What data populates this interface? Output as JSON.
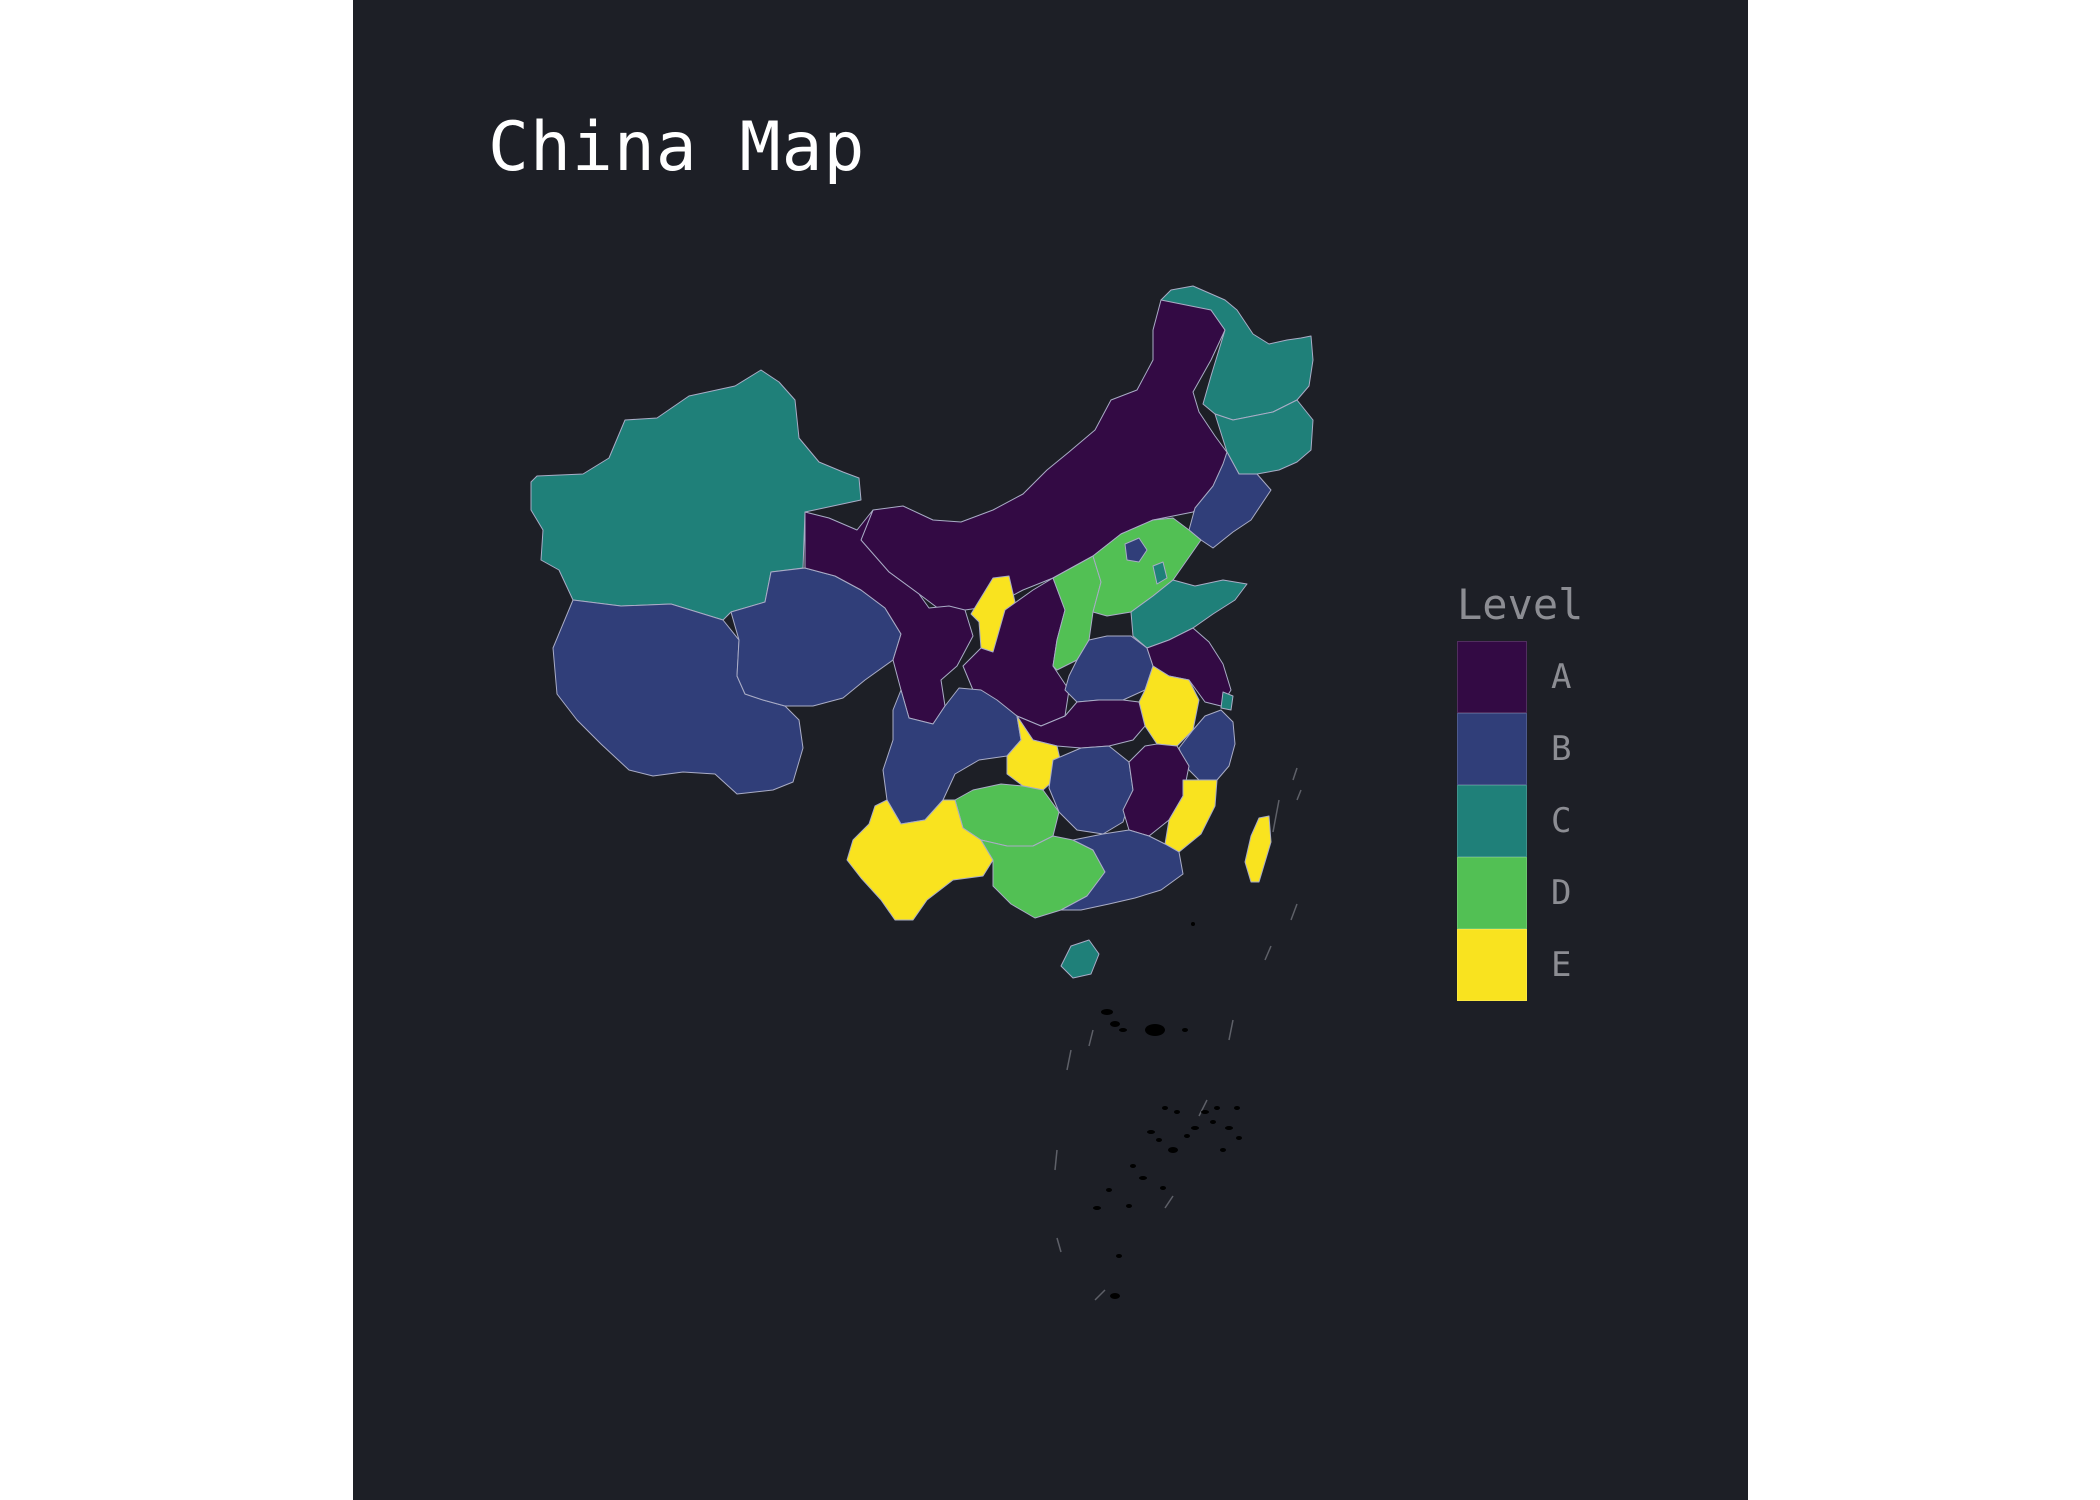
{
  "title": "China Map",
  "legend": {
    "title": "Level",
    "items": [
      {
        "label": "A",
        "color": "#330a44"
      },
      {
        "label": "B",
        "color": "#303e79"
      },
      {
        "label": "C",
        "color": "#1f8079"
      },
      {
        "label": "D",
        "color": "#52c054"
      },
      {
        "label": "E",
        "color": "#f9e31f"
      }
    ]
  },
  "map_data": {
    "type": "choropleth",
    "regions": [
      {
        "name": "Xinjiang",
        "level": "C"
      },
      {
        "name": "Tibet",
        "level": "B"
      },
      {
        "name": "Qinghai",
        "level": "B"
      },
      {
        "name": "Inner Mongolia",
        "level": "A"
      },
      {
        "name": "Heilongjiang",
        "level": "C"
      },
      {
        "name": "Jilin",
        "level": "C"
      },
      {
        "name": "Liaoning",
        "level": "B"
      },
      {
        "name": "Gansu",
        "level": "A"
      },
      {
        "name": "Ningxia",
        "level": "E"
      },
      {
        "name": "Shaanxi",
        "level": "A"
      },
      {
        "name": "Shanxi",
        "level": "D"
      },
      {
        "name": "Hebei",
        "level": "D"
      },
      {
        "name": "Beijing",
        "level": "B"
      },
      {
        "name": "Tianjin",
        "level": "C"
      },
      {
        "name": "Shandong",
        "level": "C"
      },
      {
        "name": "Henan",
        "level": "B"
      },
      {
        "name": "Jiangsu",
        "level": "A"
      },
      {
        "name": "Anhui",
        "level": "E"
      },
      {
        "name": "Shanghai",
        "level": "C"
      },
      {
        "name": "Zhejiang",
        "level": "B"
      },
      {
        "name": "Hubei",
        "level": "A"
      },
      {
        "name": "Sichuan",
        "level": "B"
      },
      {
        "name": "Chongqing",
        "level": "E"
      },
      {
        "name": "Hunan",
        "level": "B"
      },
      {
        "name": "Jiangxi",
        "level": "A"
      },
      {
        "name": "Fujian",
        "level": "E"
      },
      {
        "name": "Guizhou",
        "level": "D"
      },
      {
        "name": "Yunnan",
        "level": "E"
      },
      {
        "name": "Guangxi",
        "level": "D"
      },
      {
        "name": "Guangdong",
        "level": "B"
      },
      {
        "name": "Hainan",
        "level": "C"
      },
      {
        "name": "Taiwan",
        "level": "E"
      }
    ]
  }
}
